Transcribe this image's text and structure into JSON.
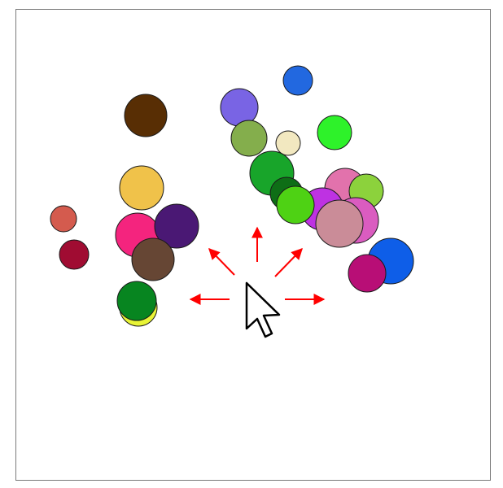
{
  "game": {
    "circle_color_order": [
      "#582e04",
      "#7964e4",
      "#2268e0",
      "#84ae4c",
      "#f2e8c0",
      "#2ef22a",
      "#f0c24a",
      "#18a52a",
      "#e272ac",
      "#8cd23c",
      "#0e6e16",
      "#be32e2",
      "#da5cc0",
      "#4ed214",
      "#ca8c98",
      "#d45b4e",
      "#f4247e",
      "#4a1874",
      "#a00c32",
      "#664634",
      "#0e5ee8",
      "#b80e76",
      "#e8f436",
      "#078520"
    ],
    "arrow_color": "#ff0000",
    "cursor": {
      "icon": "arrow-pointer-icon",
      "fill": "#ffffff",
      "stroke": "#000000"
    },
    "arrows": [
      {
        "direction": "up"
      },
      {
        "direction": "up-left"
      },
      {
        "direction": "up-right"
      },
      {
        "direction": "left"
      },
      {
        "direction": "right"
      }
    ]
  }
}
